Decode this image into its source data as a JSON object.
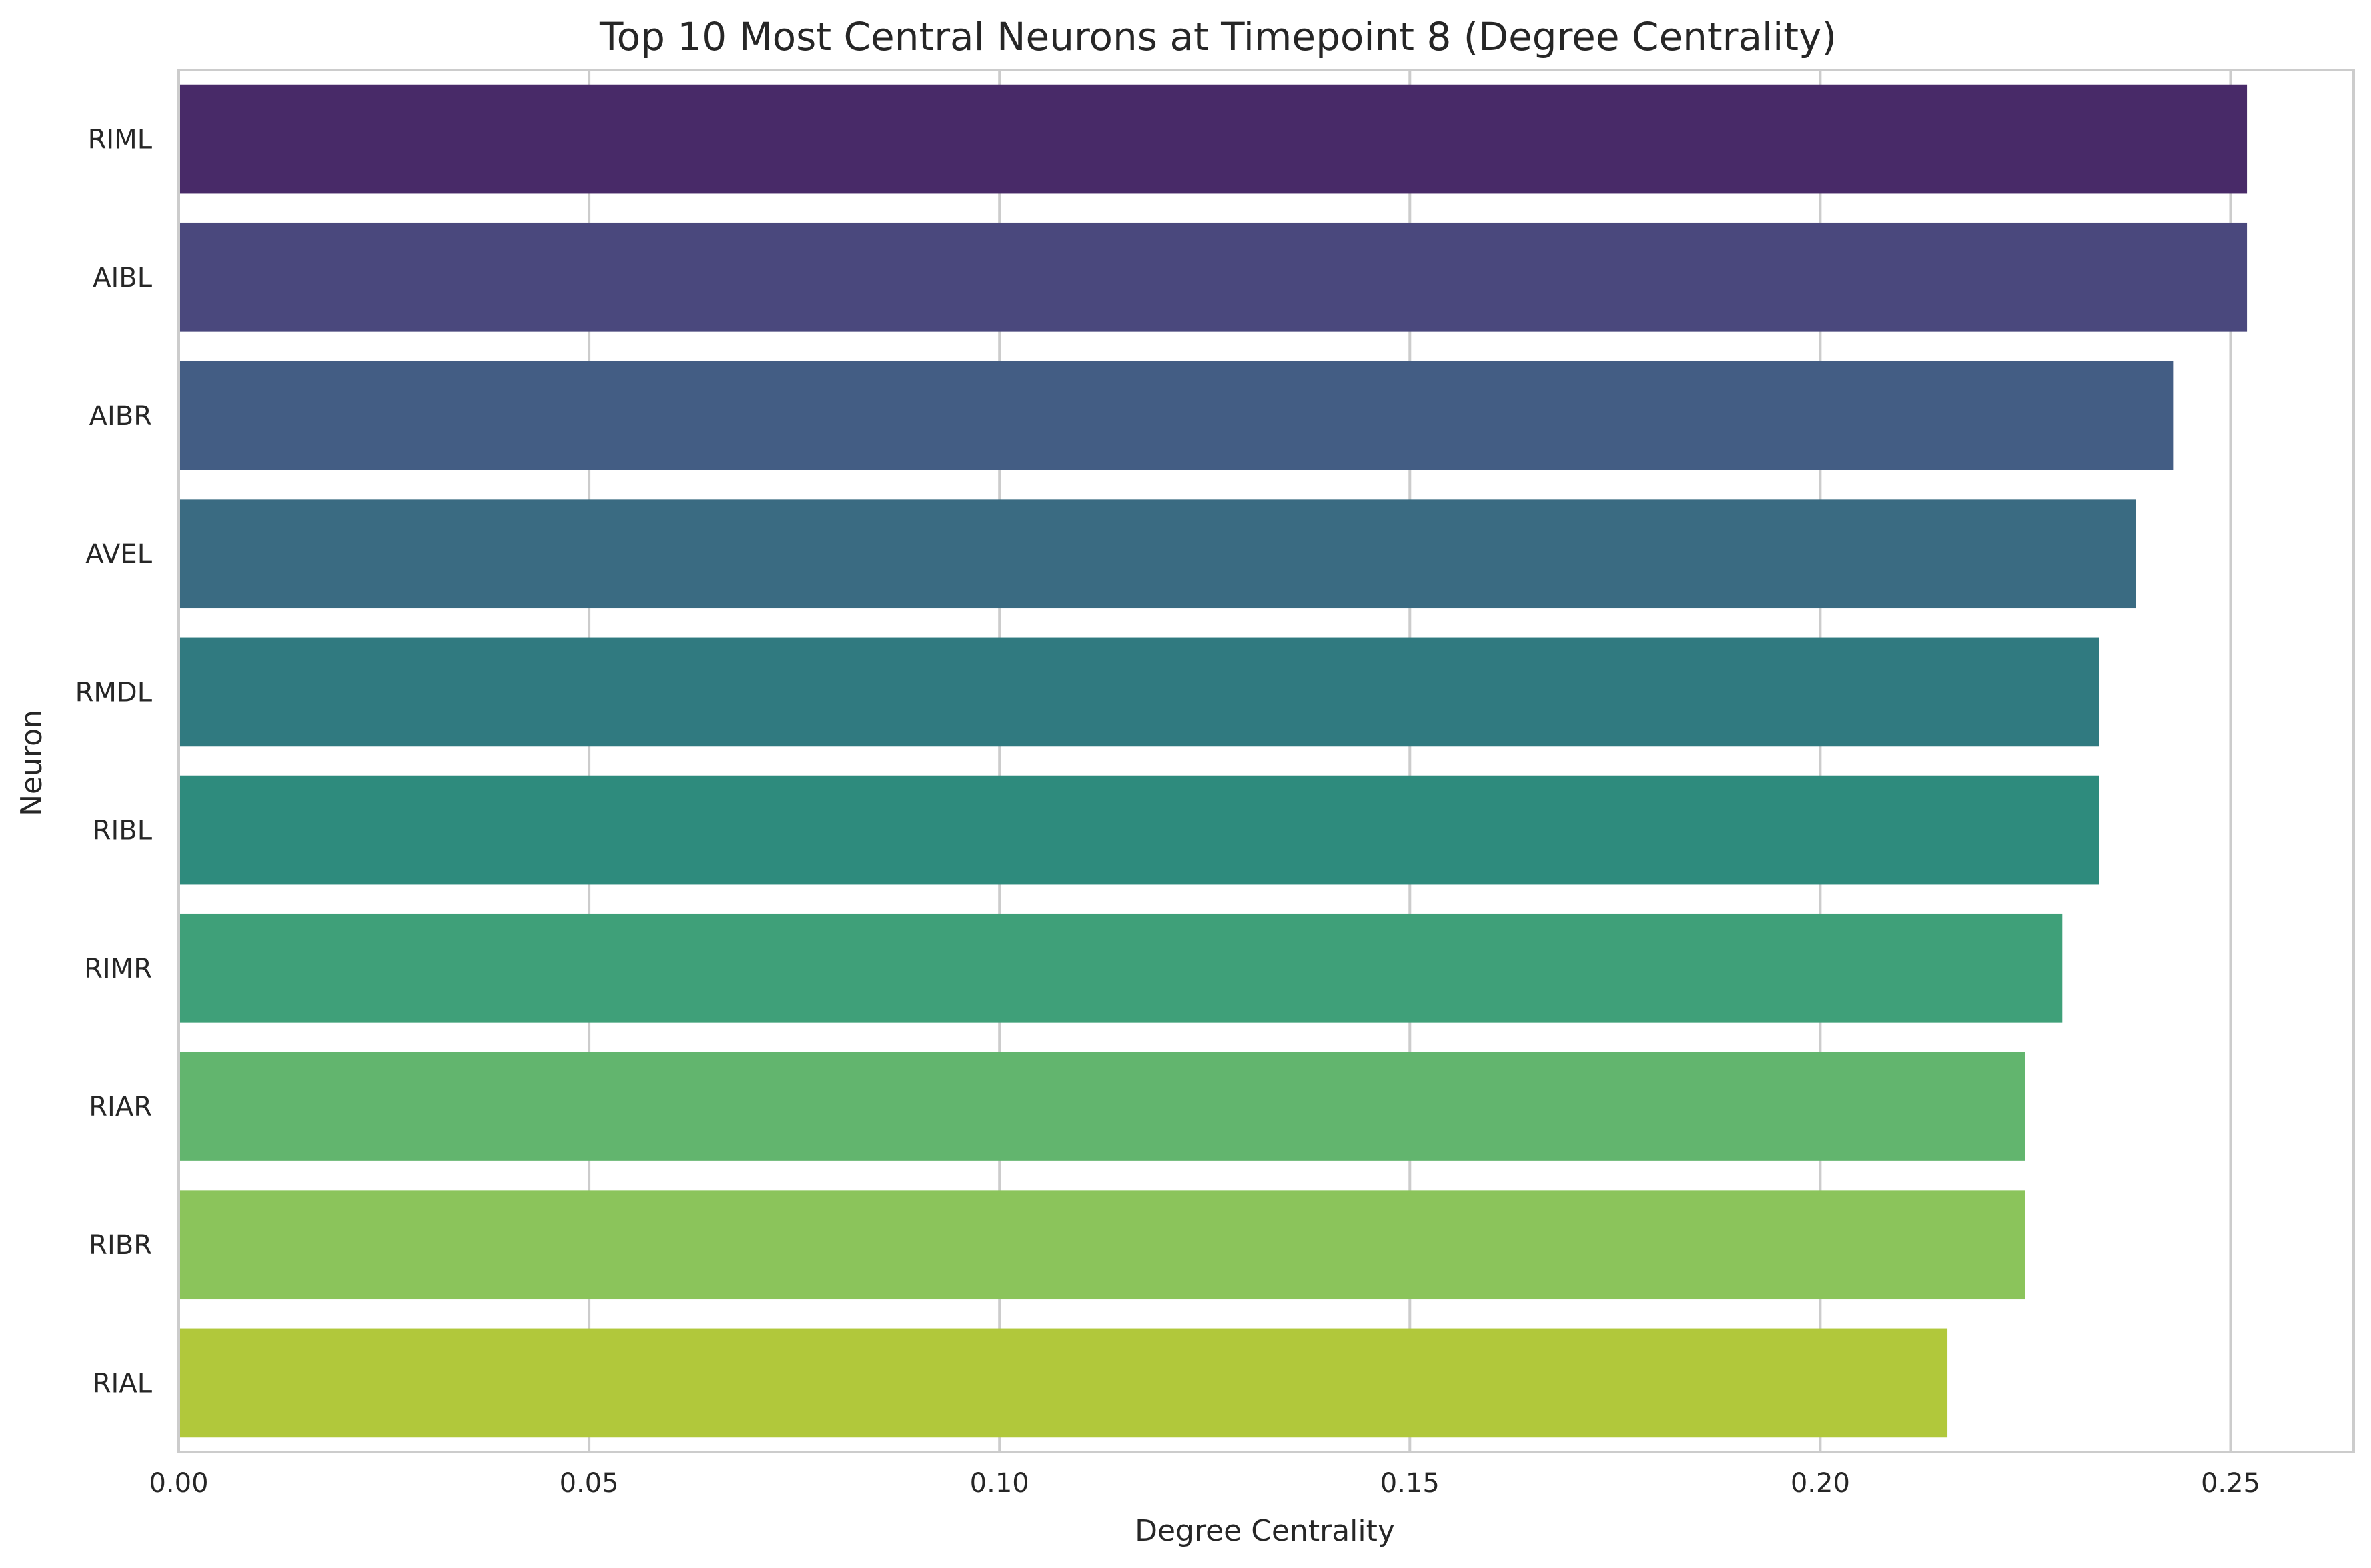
{
  "chart_data": {
    "type": "bar",
    "orientation": "horizontal",
    "title": "Top 10 Most Central Neurons at Timepoint 8 (Degree Centrality)",
    "xlabel": "Degree Centrality",
    "ylabel": "Neuron",
    "xlim": [
      0,
      0.265
    ],
    "xticks": [
      0.0,
      0.05,
      0.1,
      0.15,
      0.2,
      0.25
    ],
    "xtick_labels": [
      "0.00",
      "0.05",
      "0.10",
      "0.15",
      "0.20",
      "0.25"
    ],
    "grid": true,
    "categories": [
      "RIML",
      "AIBL",
      "AIBR",
      "AVEL",
      "RMDL",
      "RIBL",
      "RIMR",
      "RIAR",
      "RIBR",
      "RIAL"
    ],
    "values": [
      0.252,
      0.252,
      0.243,
      0.2385,
      0.234,
      0.234,
      0.2295,
      0.225,
      0.225,
      0.2155
    ],
    "colors": [
      "#482a68",
      "#4a487d",
      "#435d84",
      "#3a6b82",
      "#307a80",
      "#2e8b7d",
      "#3fa079",
      "#62b56e",
      "#8bc45b",
      "#b1c83b"
    ]
  }
}
